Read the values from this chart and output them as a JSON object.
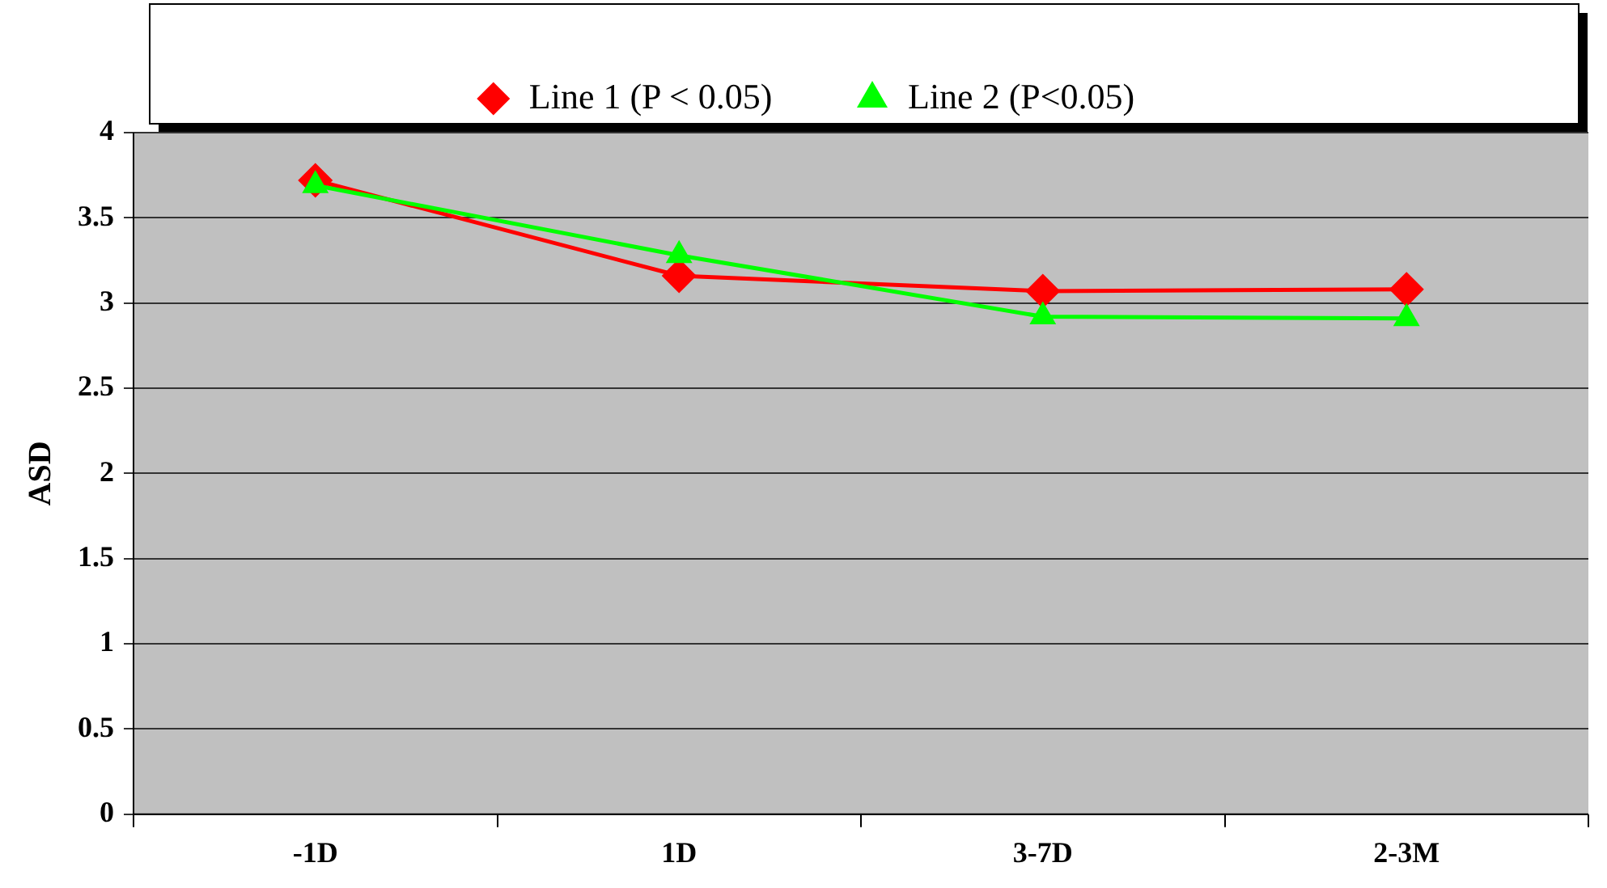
{
  "chart_data": {
    "type": "line",
    "ylabel": "ASD",
    "categories": [
      "-1D",
      "1D",
      "3-7D",
      "2-3M"
    ],
    "series": [
      {
        "name": "Line 1 (P < 0.05)",
        "color": "#ff0000",
        "marker": "diamond",
        "values": [
          3.72,
          3.16,
          3.07,
          3.08
        ]
      },
      {
        "name": "Line 2 (P<0.05)",
        "color": "#00ff00",
        "marker": "triangle",
        "values": [
          3.69,
          3.28,
          2.92,
          2.91
        ]
      }
    ],
    "ylim": [
      0,
      4
    ],
    "yticks": [
      0,
      0.5,
      1,
      1.5,
      2,
      2.5,
      3,
      3.5,
      4
    ],
    "grid": "y",
    "legend": "top",
    "line_style": "solid"
  }
}
